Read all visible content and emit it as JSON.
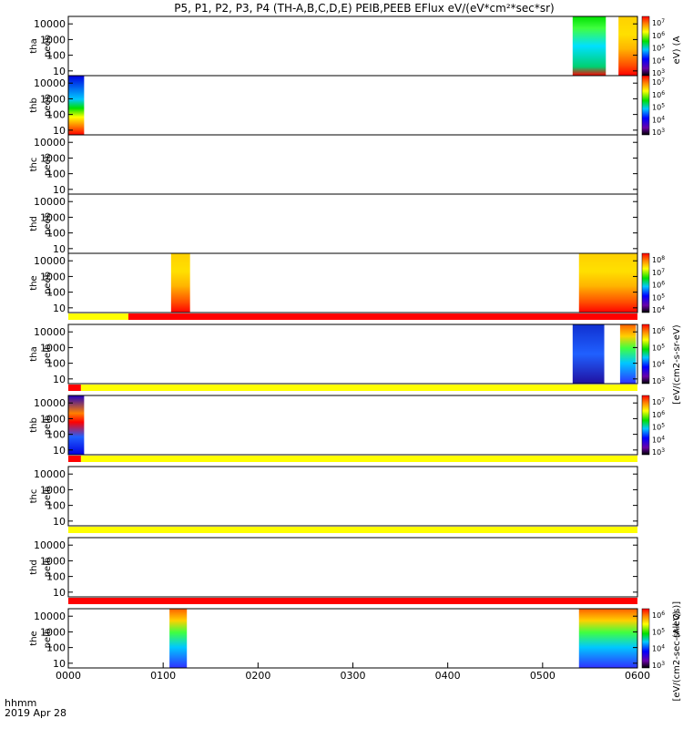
{
  "title": "P5, P1, P2, P3, P4 (TH-A,B,C,D,E) PEIB,PEEB EFlux eV/(eV*cm²*sec*sr)",
  "footer": {
    "time_label": "hhmm",
    "date_label": "2019 Apr 28"
  },
  "x_ticks": [
    "0000",
    "0100",
    "0200",
    "0300",
    "0400",
    "0500",
    "0600"
  ],
  "panels": [
    {
      "line1": "tha",
      "line2": "peeb",
      "y_ticks": [
        "10000",
        "1000",
        "100",
        "10"
      ]
    },
    {
      "line1": "thb",
      "line2": "peeb",
      "y_ticks": [
        "10000",
        "1000",
        "100",
        "10"
      ]
    },
    {
      "line1": "thc",
      "line2": "peeb",
      "y_ticks": [
        "10000",
        "1000",
        "100",
        "10"
      ]
    },
    {
      "line1": "thd",
      "line2": "peeb",
      "y_ticks": [
        "10000",
        "1000",
        "100",
        "10"
      ]
    },
    {
      "line1": "the",
      "line2": "peeb",
      "y_ticks": [
        "10000",
        "1000",
        "100",
        "10"
      ]
    },
    {
      "line1": "tha",
      "line2": "peib",
      "y_ticks": [
        "10000",
        "1000",
        "100",
        "10"
      ]
    },
    {
      "line1": "thb",
      "line2": "peib",
      "y_ticks": [
        "10000",
        "1000",
        "100",
        "10"
      ]
    },
    {
      "line1": "thc",
      "line2": "peib",
      "y_ticks": [
        "10000",
        "1000",
        "100",
        "10"
      ]
    },
    {
      "line1": "thd",
      "line2": "peib",
      "y_ticks": [
        "10000",
        "1000",
        "100",
        "10"
      ]
    },
    {
      "line1": "the",
      "line2": "peib",
      "y_ticks": [
        "10000",
        "1000",
        "100",
        "10"
      ]
    }
  ],
  "colorbars": [
    {
      "exps": [
        "7",
        "6",
        "5",
        "4",
        "3"
      ]
    },
    {
      "exps": [
        "7",
        "6",
        "5",
        "4",
        "3"
      ]
    },
    {
      "exps": [
        "8",
        "7",
        "6",
        "5",
        "4"
      ]
    },
    {
      "exps": [
        "6",
        "5",
        "4",
        "3"
      ]
    },
    {
      "exps": [
        "7",
        "6",
        "5",
        "4",
        "3"
      ]
    },
    {
      "exps": [
        "6",
        "5",
        "4",
        "3"
      ]
    }
  ],
  "side_labels": {
    "eflux_eV": "[eV/(cm2-s-sr-eV)",
    "all_qs": "(All Qs)]",
    "eflux_sec": "[eV/(cm2-sec-sr-eV)",
    "axis_fragment": "eV) (A"
  },
  "colors": {
    "red": "#ff0000",
    "yellow": "#ffff00",
    "white": "#ffffff",
    "black": "#000000"
  },
  "chart_data": {
    "type": "heatmap",
    "title": "P5, P1, P2, P3, P4 (TH-A,B,C,D,E) PEIB,PEEB EFlux eV/(eV*cm²*sec*sr)",
    "x_unit": "hhmm",
    "xlim": [
      "0000",
      "0600"
    ],
    "y_scale": "log",
    "ylim": [
      5,
      30000
    ],
    "date": "2019 Apr 28",
    "panels": [
      {
        "probe": "tha",
        "product": "peeb",
        "data_intervals": [
          [
            "0519",
            "0540"
          ],
          [
            "0548",
            "0600"
          ]
        ],
        "cbar_exp_range": [
          3,
          7
        ]
      },
      {
        "probe": "thb",
        "product": "peeb",
        "data_intervals": [
          [
            "0000",
            "0010"
          ]
        ],
        "cbar_exp_range": [
          3,
          7
        ]
      },
      {
        "probe": "thc",
        "product": "peeb",
        "data_intervals": []
      },
      {
        "probe": "thd",
        "product": "peeb",
        "data_intervals": []
      },
      {
        "probe": "the",
        "product": "peeb",
        "data_intervals": [
          [
            "0105",
            "0117"
          ],
          [
            "0523",
            "0600"
          ]
        ],
        "cbar_exp_range": [
          4,
          8
        ]
      },
      {
        "probe": "tha",
        "product": "peib",
        "data_intervals": [
          [
            "0519",
            "0539"
          ],
          [
            "0549",
            "0559"
          ]
        ],
        "cbar_exp_range": [
          3,
          6
        ]
      },
      {
        "probe": "thb",
        "product": "peib",
        "data_intervals": [
          [
            "0000",
            "0010"
          ]
        ],
        "cbar_exp_range": [
          3,
          7
        ]
      },
      {
        "probe": "thc",
        "product": "peib",
        "data_intervals": []
      },
      {
        "probe": "thd",
        "product": "peib",
        "data_intervals": []
      },
      {
        "probe": "the",
        "product": "peib",
        "data_intervals": [
          [
            "0104",
            "0115"
          ],
          [
            "0523",
            "0600"
          ]
        ],
        "cbar_exp_range": [
          3,
          6
        ]
      }
    ],
    "status_bars": [
      {
        "after_panel": 5,
        "segments": [
          {
            "from": "0000",
            "to": "0038",
            "color": "yellow"
          },
          {
            "from": "0038",
            "to": "0600",
            "color": "red"
          }
        ]
      },
      {
        "after_panel": 6,
        "segments": [
          {
            "from": "0000",
            "to": "0008",
            "color": "red"
          },
          {
            "from": "0008",
            "to": "0600",
            "color": "yellow"
          }
        ]
      },
      {
        "after_panel": 7,
        "segments": [
          {
            "from": "0000",
            "to": "0008",
            "color": "red"
          },
          {
            "from": "0008",
            "to": "0600",
            "color": "yellow"
          }
        ]
      },
      {
        "after_panel": 8,
        "segments": [
          {
            "from": "0000",
            "to": "0600",
            "color": "yellow"
          }
        ]
      },
      {
        "after_panel": 9,
        "segments": [
          {
            "from": "0000",
            "to": "0600",
            "color": "red"
          }
        ]
      }
    ]
  }
}
